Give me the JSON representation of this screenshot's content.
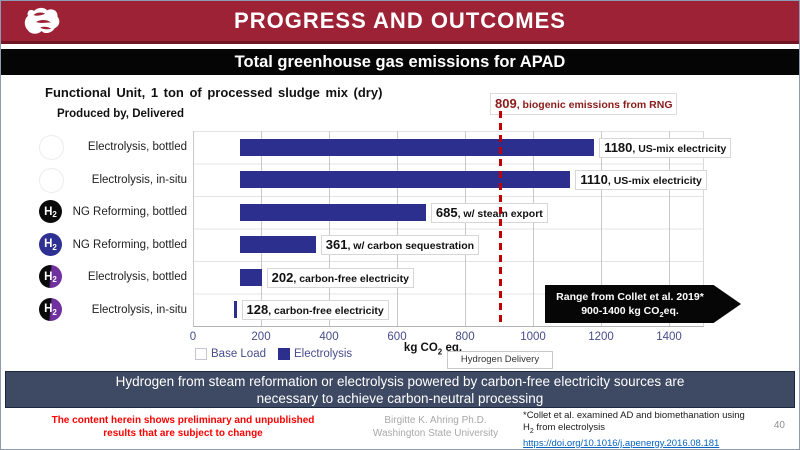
{
  "header": {
    "title": "PROGRESS AND OUTCOMES"
  },
  "subtitle_bar": {
    "text": "Total greenhouse gas emissions for APAD"
  },
  "chart": {
    "functional_unit": "Functional Unit, 1 ton of processed sludge mix (dry)",
    "produced_by": "Produced by, Delivered",
    "biogenic_annotation": {
      "value": "809",
      "text": ", biogenic emissions from RNG"
    },
    "h2_icon_text": {
      "pre": "H",
      "sub": "2"
    },
    "rows": [
      {
        "category": "Electrolysis, bottled",
        "icon": "white",
        "bar_start": 138,
        "value": 1180,
        "label_value": "1180",
        "label_text": ", US-mix electricity"
      },
      {
        "category": "Electrolysis, in-situ",
        "icon": "white",
        "bar_start": 138,
        "value": 1110,
        "label_value": "1110",
        "label_text": ", US-mix electricity"
      },
      {
        "category": "NG Reforming, bottled",
        "icon": "black",
        "bar_start": 138,
        "value": 685,
        "label_value": "685",
        "label_text": ", w/ steam export"
      },
      {
        "category": "NG Reforming, bottled",
        "icon": "navy",
        "bar_start": 138,
        "value": 361,
        "label_value": "361",
        "label_text": ", w/ carbon sequestration"
      },
      {
        "category": "Electrolysis, bottled",
        "icon": "duo",
        "bar_start": 138,
        "value": 202,
        "label_value": "202",
        "label_text": ", carbon-free electricity"
      },
      {
        "category": "Electrolysis, in-situ",
        "icon": "duo",
        "bar_start": 120,
        "value": 128,
        "label_value": "128",
        "label_text": ", carbon-free electricity"
      }
    ],
    "x_ticks": [
      "0",
      "200",
      "400",
      "600",
      "800",
      "1000",
      "1200",
      "1400"
    ],
    "x_axis_label": {
      "pre": "kg CO",
      "sub": "2",
      "post": " eq."
    },
    "legend": [
      {
        "label": "Base Load",
        "color": "#FFFFFF"
      },
      {
        "label": "Electrolysis",
        "color": "#2D2F8F"
      }
    ],
    "hydrogen_delivery": "Hydrogen Delivery",
    "range_box": {
      "line1": "Range from Collet et al. 2019*",
      "line2_pre": "900-1400 kg CO",
      "line2_sub": "2",
      "line2_post": "eq."
    }
  },
  "banner": {
    "line1": "Hydrogen from steam reformation or electrolysis powered by carbon-free electricity sources are",
    "line2": "necessary to achieve carbon-neutral processing"
  },
  "footer": {
    "disclaimer_line1": "The content herein shows preliminary and unpublished",
    "disclaimer_line2": "results that are subject to change",
    "author_line1": "Birgitte K. Ahring Ph.D.",
    "author_line2": "Washington State University",
    "note_line1": "*Collet et al. examined AD and biomethanation using",
    "note_line2_pre": "H",
    "note_line2_sub": "2",
    "note_line2_post": " from electrolysis",
    "note_link": "https://doi.org/10.1016/j.apenergy.2016.08.181",
    "page_number": "40"
  },
  "colors": {
    "header_red": "#9D2235",
    "subtitle_black": "#050505",
    "bar_navy": "#2D2F8F",
    "reference_red": "#C00000",
    "banner_slate": "#3E4A63",
    "disclaimer_red": "#FF0000",
    "link_blue": "#0563C1",
    "icon_purple": "#7030A0"
  },
  "chart_data": {
    "type": "bar",
    "orientation": "horizontal",
    "title": "Total greenhouse gas emissions for APAD",
    "subtitle": "Functional Unit, 1 ton of processed sludge mix (dry)",
    "group_label": "Produced by, Delivered",
    "categories": [
      "Electrolysis, bottled",
      "Electrolysis, in-situ",
      "NG Reforming, bottled",
      "NG Reforming, bottled",
      "Electrolysis, bottled",
      "Electrolysis, in-situ"
    ],
    "series": [
      {
        "name": "Base Load",
        "values": [
          138,
          138,
          138,
          138,
          138,
          120
        ]
      },
      {
        "name": "Electrolysis",
        "values": [
          1180,
          1110,
          685,
          361,
          202,
          128
        ]
      }
    ],
    "data_labels": [
      "1180, US-mix electricity",
      "1110, US-mix electricity",
      "685, w/ steam export",
      "361, w/ carbon sequestration",
      "202, carbon-free electricity",
      "128, carbon-free electricity"
    ],
    "xlabel": "kg CO2 eq.",
    "xlim": [
      0,
      1500
    ],
    "x_ticks": [
      0,
      200,
      400,
      600,
      800,
      1000,
      1200,
      1400
    ],
    "grid": true,
    "legend_position": "bottom-left",
    "bar_color": "#2D2F8F",
    "reference_line": {
      "value": 809,
      "label": "809, biogenic emissions from RNG",
      "color": "#C00000",
      "style": "dashed-vertical"
    },
    "annotations": [
      "Range from Collet et al. 2019* 900-1400 kg CO2eq.",
      "Hydrogen Delivery"
    ]
  }
}
